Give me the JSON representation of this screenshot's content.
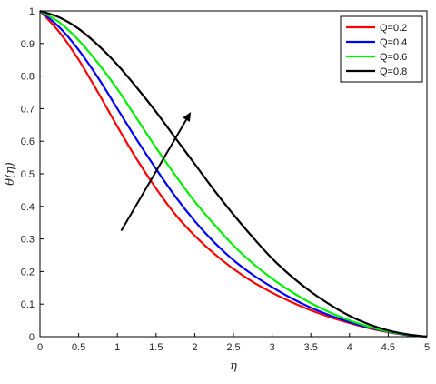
{
  "chart_data": {
    "type": "line",
    "title": "",
    "xlabel": "η",
    "ylabel": "θ(η)",
    "xlim": [
      0,
      5
    ],
    "ylim": [
      0,
      1
    ],
    "xticks": [
      "0",
      "0.5",
      "1",
      "1.5",
      "2",
      "2.5",
      "3",
      "3.5",
      "4",
      "4.5",
      "5"
    ],
    "yticks": [
      "0",
      "0.1",
      "0.2",
      "0.3",
      "0.4",
      "0.5",
      "0.6",
      "0.7",
      "0.8",
      "0.9",
      "1"
    ],
    "grid": false,
    "legend_position": "top-right",
    "x": [
      0,
      0.25,
      0.5,
      0.75,
      1,
      1.25,
      1.5,
      1.75,
      2,
      2.25,
      2.5,
      2.75,
      3,
      3.25,
      3.5,
      3.75,
      4,
      4.25,
      4.5,
      4.75,
      5
    ],
    "series": [
      {
        "name": "Q=0.2",
        "color": "#ff0000",
        "values": [
          1.0,
          0.935,
          0.85,
          0.75,
          0.645,
          0.545,
          0.455,
          0.375,
          0.31,
          0.255,
          0.208,
          0.168,
          0.135,
          0.106,
          0.081,
          0.06,
          0.042,
          0.026,
          0.014,
          0.005,
          0.0
        ]
      },
      {
        "name": "Q=0.4",
        "color": "#0000ff",
        "values": [
          1.0,
          0.95,
          0.88,
          0.795,
          0.7,
          0.605,
          0.515,
          0.43,
          0.355,
          0.29,
          0.235,
          0.19,
          0.152,
          0.118,
          0.089,
          0.065,
          0.045,
          0.028,
          0.015,
          0.005,
          0.0
        ]
      },
      {
        "name": "Q=0.6",
        "color": "#00ee00",
        "values": [
          1.0,
          0.965,
          0.91,
          0.84,
          0.76,
          0.67,
          0.58,
          0.495,
          0.415,
          0.345,
          0.28,
          0.225,
          0.178,
          0.138,
          0.103,
          0.074,
          0.05,
          0.031,
          0.016,
          0.006,
          0.0
        ]
      },
      {
        "name": "Q=0.8",
        "color": "#000000",
        "values": [
          1.0,
          0.98,
          0.945,
          0.895,
          0.835,
          0.765,
          0.69,
          0.61,
          0.53,
          0.45,
          0.375,
          0.305,
          0.24,
          0.185,
          0.138,
          0.098,
          0.064,
          0.038,
          0.019,
          0.007,
          0.0
        ]
      }
    ],
    "annotation_arrow": {
      "from": [
        1.05,
        0.325
      ],
      "to": [
        1.95,
        0.69
      ],
      "color": "#000000"
    }
  }
}
